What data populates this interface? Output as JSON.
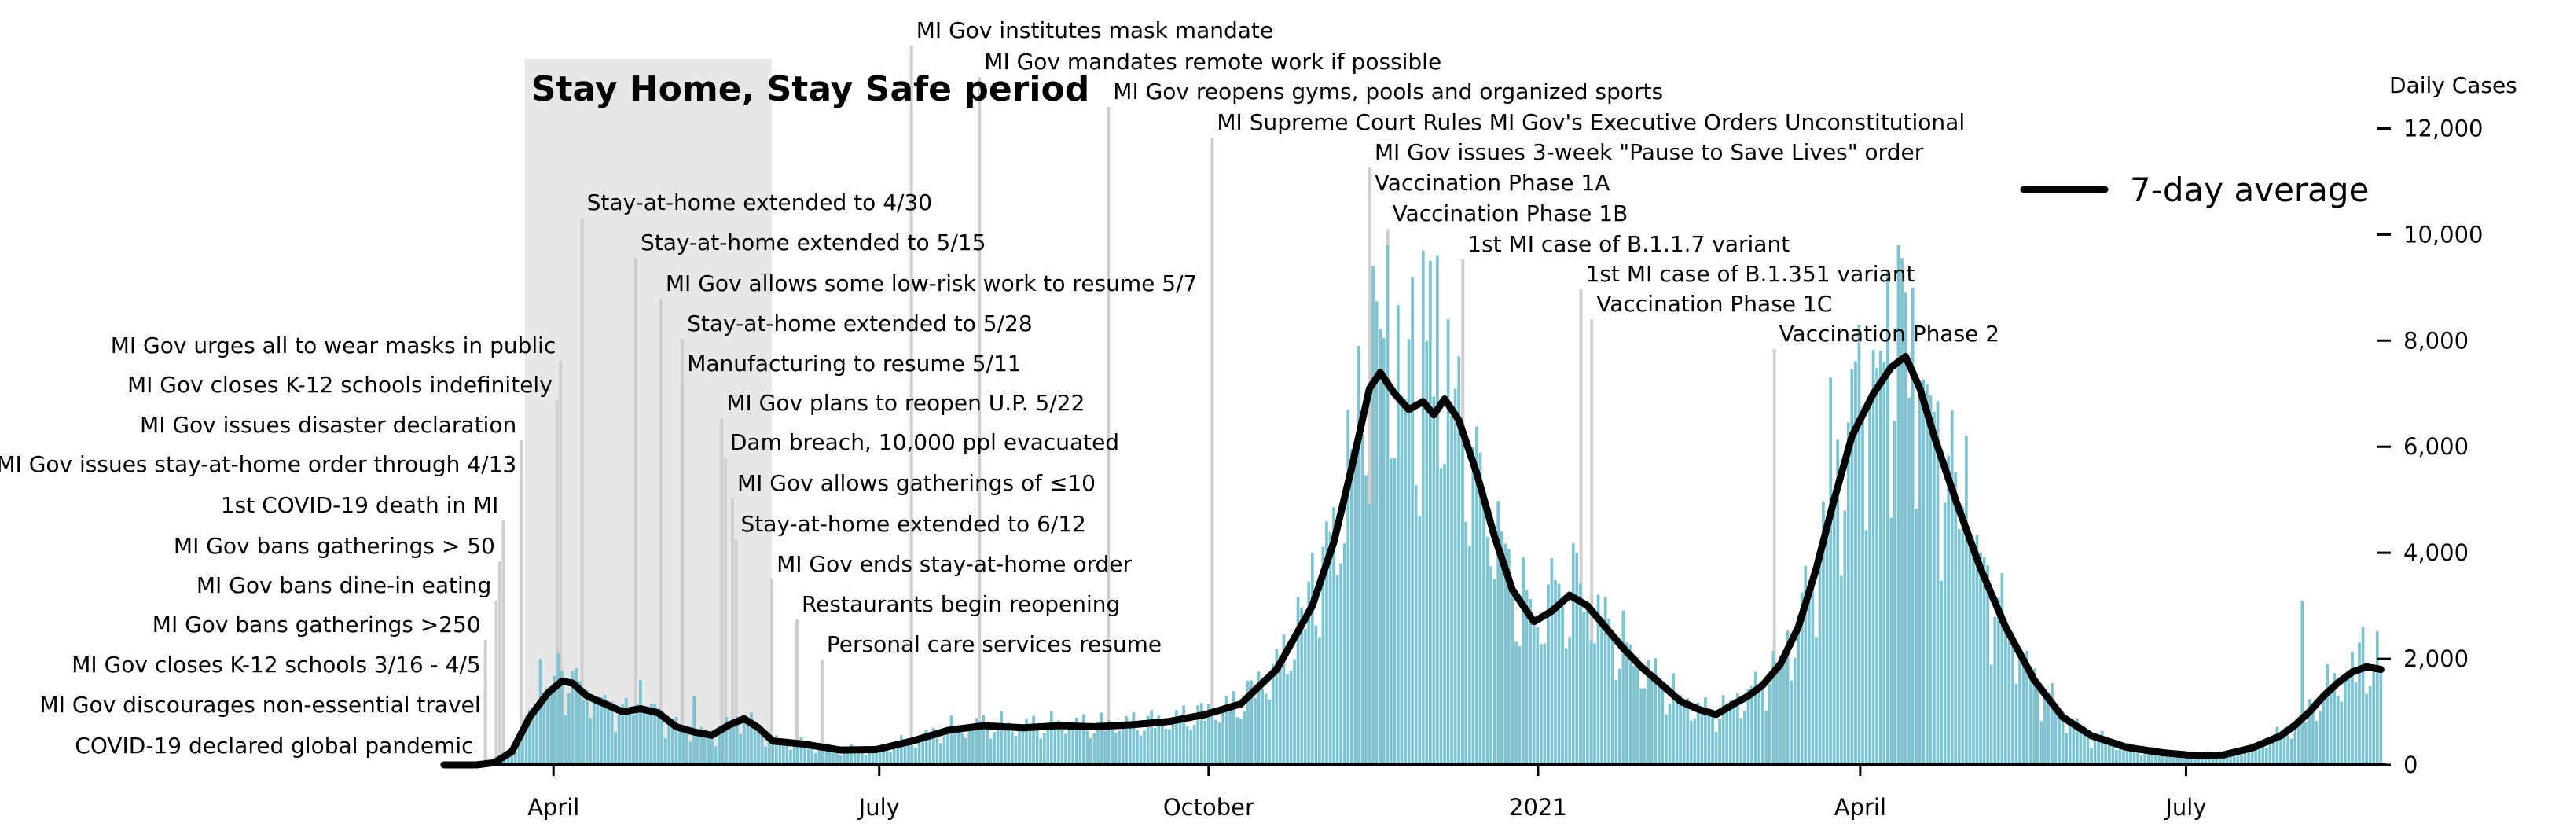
{
  "chart_data": {
    "type": "bar",
    "title": "",
    "xlabel": "",
    "ylabel": "Daily Cases",
    "ylim": [
      0,
      13000
    ],
    "x_range": [
      "2020-03-01",
      "2021-08-25"
    ],
    "y_ticks": [
      0,
      2000,
      4000,
      6000,
      8000,
      10000,
      12000
    ],
    "y_tick_labels": [
      "0",
      "2,000",
      "4,000",
      "6,000",
      "8,000",
      "10,000",
      "12,000"
    ],
    "x_ticks": [
      {
        "date": "2020-04-01",
        "label": "April"
      },
      {
        "date": "2020-07-01",
        "label": "July"
      },
      {
        "date": "2020-10-01",
        "label": "October"
      },
      {
        "date": "2021-01-01",
        "label": "2021"
      },
      {
        "date": "2021-04-01",
        "label": "April"
      },
      {
        "date": "2021-07-01",
        "label": "July"
      }
    ],
    "grid": false,
    "legend": {
      "position": "top-right",
      "entries": [
        {
          "label": "7-day average",
          "color": "#000000"
        }
      ]
    },
    "colors": {
      "bars": "#7cc4d1",
      "line": "#000000",
      "period_shade": "#e6e7e8",
      "event_lines": "#cfcfcf"
    },
    "shaded_period": {
      "label": "Stay Home, Stay Safe period",
      "start": "2020-03-24",
      "end": "2020-06-01"
    },
    "series": [
      {
        "name": "7-day average",
        "kind": "line",
        "points": [
          [
            "2020-03-01",
            0
          ],
          [
            "2020-03-10",
            0
          ],
          [
            "2020-03-15",
            40
          ],
          [
            "2020-03-20",
            250
          ],
          [
            "2020-03-25",
            900
          ],
          [
            "2020-03-30",
            1350
          ],
          [
            "2020-04-03",
            1580
          ],
          [
            "2020-04-06",
            1540
          ],
          [
            "2020-04-10",
            1300
          ],
          [
            "2020-04-15",
            1150
          ],
          [
            "2020-04-20",
            1000
          ],
          [
            "2020-04-25",
            1060
          ],
          [
            "2020-04-30",
            980
          ],
          [
            "2020-05-05",
            720
          ],
          [
            "2020-05-10",
            620
          ],
          [
            "2020-05-15",
            560
          ],
          [
            "2020-05-20",
            760
          ],
          [
            "2020-05-24",
            870
          ],
          [
            "2020-05-28",
            700
          ],
          [
            "2020-06-01",
            450
          ],
          [
            "2020-06-10",
            390
          ],
          [
            "2020-06-20",
            280
          ],
          [
            "2020-06-30",
            290
          ],
          [
            "2020-07-10",
            450
          ],
          [
            "2020-07-20",
            650
          ],
          [
            "2020-07-30",
            740
          ],
          [
            "2020-08-10",
            700
          ],
          [
            "2020-08-20",
            740
          ],
          [
            "2020-08-30",
            720
          ],
          [
            "2020-09-10",
            760
          ],
          [
            "2020-09-20",
            820
          ],
          [
            "2020-09-30",
            950
          ],
          [
            "2020-10-10",
            1150
          ],
          [
            "2020-10-20",
            1800
          ],
          [
            "2020-10-30",
            3000
          ],
          [
            "2020-11-05",
            4200
          ],
          [
            "2020-11-10",
            5600
          ],
          [
            "2020-11-15",
            7100
          ],
          [
            "2020-11-18",
            7400
          ],
          [
            "2020-11-22",
            7000
          ],
          [
            "2020-11-26",
            6700
          ],
          [
            "2020-11-30",
            6850
          ],
          [
            "2020-12-03",
            6600
          ],
          [
            "2020-12-06",
            6900
          ],
          [
            "2020-12-10",
            6500
          ],
          [
            "2020-12-15",
            5500
          ],
          [
            "2020-12-20",
            4300
          ],
          [
            "2020-12-25",
            3300
          ],
          [
            "2020-12-31",
            2700
          ],
          [
            "2021-01-05",
            2900
          ],
          [
            "2021-01-10",
            3200
          ],
          [
            "2021-01-15",
            3000
          ],
          [
            "2021-01-20",
            2600
          ],
          [
            "2021-01-25",
            2200
          ],
          [
            "2021-01-30",
            1850
          ],
          [
            "2021-02-05",
            1500
          ],
          [
            "2021-02-10",
            1200
          ],
          [
            "2021-02-15",
            1050
          ],
          [
            "2021-02-20",
            950
          ],
          [
            "2021-02-25",
            1150
          ],
          [
            "2021-03-01",
            1300
          ],
          [
            "2021-03-05",
            1500
          ],
          [
            "2021-03-10",
            1900
          ],
          [
            "2021-03-15",
            2600
          ],
          [
            "2021-03-20",
            3700
          ],
          [
            "2021-03-25",
            5000
          ],
          [
            "2021-03-30",
            6200
          ],
          [
            "2021-04-05",
            7000
          ],
          [
            "2021-04-10",
            7500
          ],
          [
            "2021-04-14",
            7700
          ],
          [
            "2021-04-18",
            7100
          ],
          [
            "2021-04-22",
            6200
          ],
          [
            "2021-04-28",
            5000
          ],
          [
            "2021-05-05",
            3700
          ],
          [
            "2021-05-12",
            2600
          ],
          [
            "2021-05-20",
            1600
          ],
          [
            "2021-05-28",
            900
          ],
          [
            "2021-06-05",
            550
          ],
          [
            "2021-06-15",
            330
          ],
          [
            "2021-06-25",
            230
          ],
          [
            "2021-07-05",
            170
          ],
          [
            "2021-07-12",
            190
          ],
          [
            "2021-07-20",
            320
          ],
          [
            "2021-07-28",
            550
          ],
          [
            "2021-08-01",
            750
          ],
          [
            "2021-08-05",
            1000
          ],
          [
            "2021-08-09",
            1300
          ],
          [
            "2021-08-13",
            1550
          ],
          [
            "2021-08-17",
            1750
          ],
          [
            "2021-08-21",
            1850
          ],
          [
            "2021-08-25",
            1800
          ]
        ]
      },
      {
        "name": "",
        "kind": "bars",
        "points": [
          [
            "2020-03-28",
            2000
          ],
          [
            "2020-04-02",
            2100
          ],
          [
            "2020-04-25",
            1600
          ],
          [
            "2020-05-10",
            1300
          ],
          [
            "2020-10-30",
            4000
          ],
          [
            "2020-11-12",
            7900
          ],
          [
            "2020-11-16",
            9400
          ],
          [
            "2020-11-20",
            9800
          ],
          [
            "2020-11-27",
            9200
          ],
          [
            "2020-11-30",
            9700
          ],
          [
            "2020-12-02",
            9500
          ],
          [
            "2020-12-04",
            9600
          ],
          [
            "2020-12-14",
            6000
          ],
          [
            "2020-12-22",
            4400
          ],
          [
            "2021-01-05",
            3900
          ],
          [
            "2021-01-12",
            4000
          ],
          [
            "2021-03-24",
            7300
          ],
          [
            "2021-04-01",
            8300
          ],
          [
            "2021-04-09",
            9300
          ],
          [
            "2021-04-12",
            9800
          ],
          [
            "2021-04-16",
            9000
          ],
          [
            "2021-05-01",
            6200
          ],
          [
            "2021-08-03",
            3100
          ],
          [
            "2021-08-20",
            2600
          ]
        ]
      }
    ],
    "events": [
      {
        "date": "2020-03-11",
        "label": "COVID-19 declared global pandemic"
      },
      {
        "date": "2020-03-13",
        "label": "MI Gov discourages non-essential travel"
      },
      {
        "date": "2020-03-13",
        "label": "MI Gov closes K-12 schools 3/16 - 4/5"
      },
      {
        "date": "2020-03-13",
        "label": "MI Gov bans gatherings >250"
      },
      {
        "date": "2020-03-16",
        "label": "MI Gov bans dine-in eating"
      },
      {
        "date": "2020-03-17",
        "label": "MI Gov bans gatherings > 50"
      },
      {
        "date": "2020-03-18",
        "label": "1st COVID-19 death in MI"
      },
      {
        "date": "2020-03-23",
        "label": "MI Gov issues stay-at-home order through 4/13"
      },
      {
        "date": "2020-03-23",
        "label": "MI Gov issues disaster declaration"
      },
      {
        "date": "2020-04-02",
        "label": "MI Gov closes K-12 schools indefinitely"
      },
      {
        "date": "2020-04-03",
        "label": "MI Gov urges all to wear masks in public"
      },
      {
        "date": "2020-04-09",
        "label": "Stay-at-home extended to 4/30"
      },
      {
        "date": "2020-04-24",
        "label": "Stay-at-home extended to 5/15"
      },
      {
        "date": "2020-05-01",
        "label": "MI Gov allows some low-risk work to resume 5/7"
      },
      {
        "date": "2020-05-07",
        "label": "Stay-at-home extended to 5/28"
      },
      {
        "date": "2020-05-07",
        "label": "Manufacturing to resume 5/11"
      },
      {
        "date": "2020-05-18",
        "label": "MI Gov plans to reopen U.P. 5/22"
      },
      {
        "date": "2020-05-19",
        "label": "Dam breach, 10,000 ppl evacuated"
      },
      {
        "date": "2020-05-21",
        "label": "MI Gov allows gatherings of ≤10"
      },
      {
        "date": "2020-05-22",
        "label": "Stay-at-home extended to 6/12"
      },
      {
        "date": "2020-06-01",
        "label": "MI Gov ends stay-at-home order"
      },
      {
        "date": "2020-06-08",
        "label": "Restaurants begin reopening"
      },
      {
        "date": "2020-06-15",
        "label": "Personal care services resume"
      },
      {
        "date": "2020-07-10",
        "label": "MI Gov institutes mask mandate"
      },
      {
        "date": "2020-07-29",
        "label": "MI Gov mandates remote work if possible"
      },
      {
        "date": "2020-09-03",
        "label": "MI Gov reopens gyms, pools and organized sports"
      },
      {
        "date": "2020-10-02",
        "label": "MI Supreme Court Rules MI Gov's Executive Orders Unconstitutional"
      },
      {
        "date": "2020-11-15",
        "label": "MI Gov issues 3-week \"Pause to Save Lives\" order"
      },
      {
        "date": "2020-11-15",
        "label": "Vaccination Phase 1A"
      },
      {
        "date": "2020-11-20",
        "label": "Vaccination Phase 1B"
      },
      {
        "date": "2020-12-11",
        "label": "1st MI case of B.1.1.7 variant"
      },
      {
        "date": "2021-01-13",
        "label": "1st MI case of B.1.351 variant"
      },
      {
        "date": "2021-01-16",
        "label": "Vaccination Phase 1C"
      },
      {
        "date": "2021-03-08",
        "label": "Vaccination Phase 2"
      }
    ]
  }
}
